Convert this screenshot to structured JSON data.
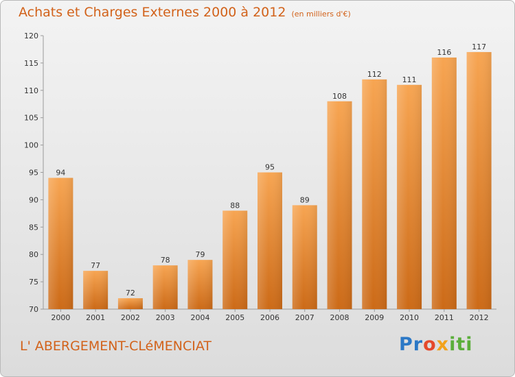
{
  "header": {
    "title": "Achats et Charges Externes 2000 à 2012",
    "subtitle": "(en milliers d'€)"
  },
  "footer": {
    "commune": "L' ABERGEMENT-CLéMENCIAT",
    "logo": "Proxiti"
  },
  "colors": {
    "bar_light": "#f7a552",
    "bar_dark": "#cc6a17",
    "title": "#d2621a"
  },
  "chart_data": {
    "type": "bar",
    "categories": [
      "2000",
      "2001",
      "2002",
      "2003",
      "2004",
      "2005",
      "2006",
      "2007",
      "2008",
      "2009",
      "2010",
      "2011",
      "2012"
    ],
    "values": [
      94,
      77,
      72,
      78,
      79,
      88,
      95,
      89,
      108,
      112,
      111,
      116,
      117
    ],
    "data_labels": [
      "94",
      "77",
      "72",
      "78",
      "79",
      "88",
      "95",
      "89",
      "108",
      "112",
      "111",
      "116",
      "117"
    ],
    "y_ticks": [
      "70",
      "75",
      "80",
      "85",
      "90",
      "95",
      "100",
      "105",
      "110",
      "115",
      "120"
    ],
    "ylim": [
      70,
      120
    ],
    "grid": false
  }
}
